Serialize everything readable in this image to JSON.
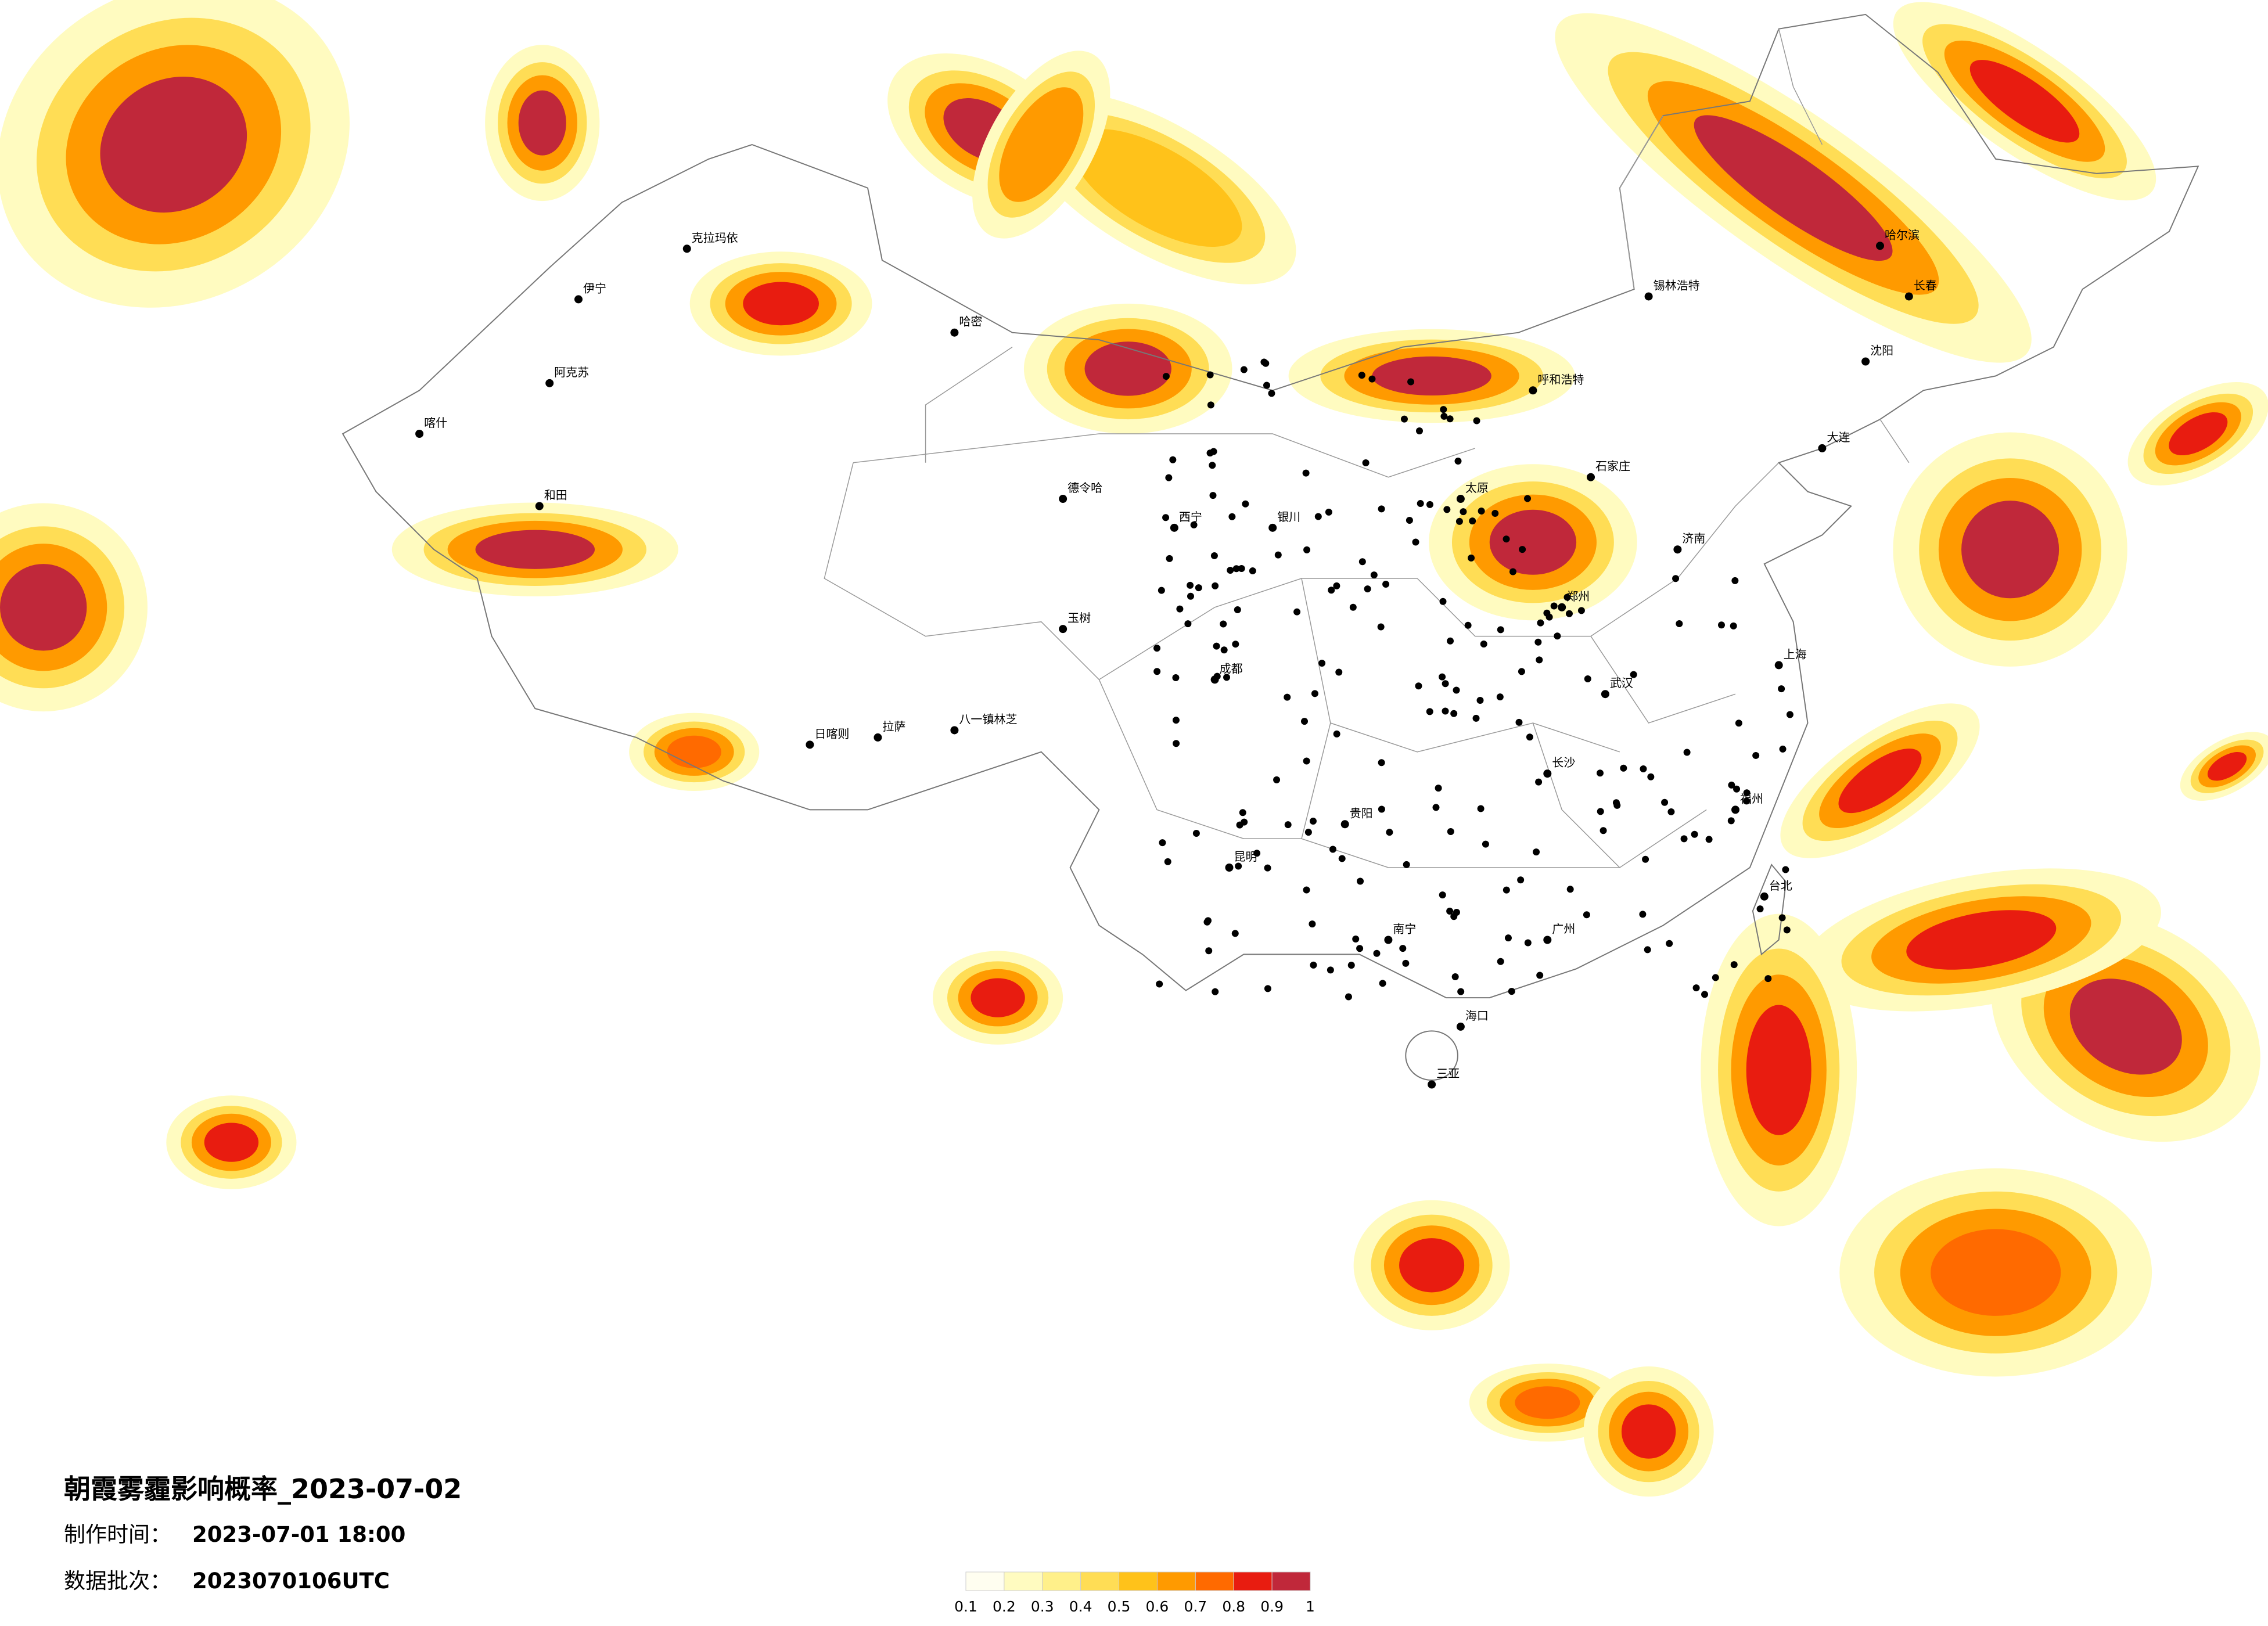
{
  "header": {
    "title": "朝霞雾霾影响概率_2023-07-02",
    "made_label": "制作时间：",
    "made_value": "2023-07-01 18:00",
    "batch_label": "数据批次：",
    "batch_value": "2023070106UTC"
  },
  "legend": {
    "colors": [
      "#fffef0",
      "#fffbc0",
      "#fff08a",
      "#ffdd55",
      "#ffc21a",
      "#ff9a00",
      "#ff6a00",
      "#e81c10",
      "#c0283a"
    ],
    "ticks": [
      0.1,
      0.2,
      0.3,
      0.4,
      0.5,
      0.6,
      0.7,
      0.8,
      0.9,
      1
    ]
  },
  "cities": [
    "克拉玛依",
    "伊宁",
    "阿克苏",
    "和田",
    "喀什",
    "哈密",
    "德令哈",
    "玉树",
    "拉萨",
    "日喀则",
    "八一镇林芝",
    "西宁",
    "银川",
    "呼和浩特",
    "锡林浩特",
    "石家庄",
    "太原",
    "郑州",
    "武汉",
    "长沙",
    "南宁",
    "海口",
    "三亚",
    "哈尔滨",
    "长春",
    "沈阳",
    "济南",
    "上海",
    "福州",
    "广州",
    "昆明",
    "成都",
    "贵阳",
    "大连",
    "台北"
  ]
}
